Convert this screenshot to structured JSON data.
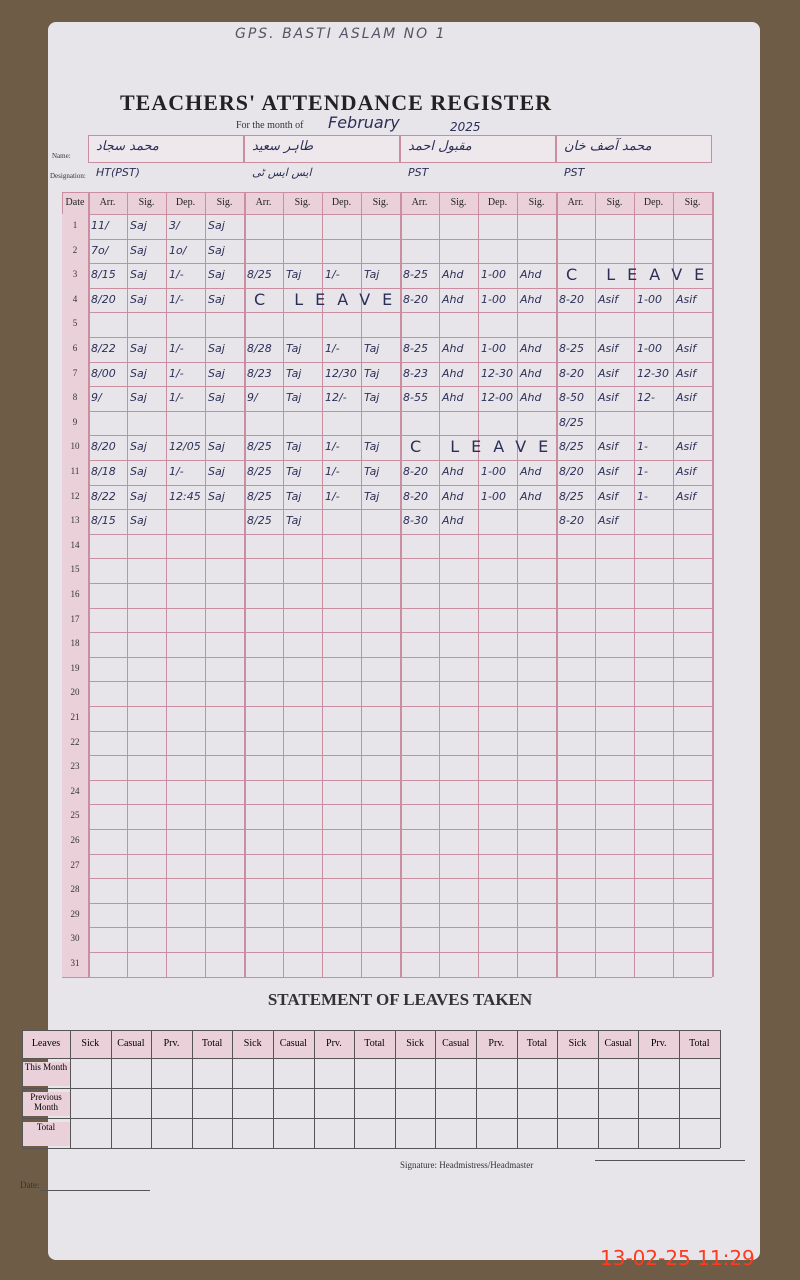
{
  "header": {
    "school": "GPS. BASTI ASLAM NO 1",
    "title": "TEACHERS' ATTENDANCE REGISTER",
    "month_label": "For the month of",
    "month": "February",
    "year": "2025",
    "name_label": "Name:",
    "designation_label": "Designation:"
  },
  "teachers": [
    {
      "name": "محمد سجاد",
      "designation": "HT(PST)"
    },
    {
      "name": "طاہر سعید",
      "designation": "ایس ایس ٹی"
    },
    {
      "name": "مقبول احمد",
      "designation": "PST"
    },
    {
      "name": "محمد آصف خان",
      "designation": "PST"
    }
  ],
  "table": {
    "date_header": "Date",
    "columns": [
      "Arr.",
      "Sig.",
      "Dep.",
      "Sig."
    ],
    "days": [
      1,
      2,
      3,
      4,
      5,
      6,
      7,
      8,
      9,
      10,
      11,
      12,
      13,
      14,
      15,
      16,
      17,
      18,
      19,
      20,
      21,
      22,
      23,
      24,
      25,
      26,
      27,
      28,
      29,
      30,
      31
    ],
    "rows": [
      [
        [
          "11/",
          "Saj",
          "3/",
          "Saj"
        ],
        [
          null,
          null,
          null,
          null
        ],
        [
          null,
          null,
          null,
          null
        ],
        [
          null,
          null,
          null,
          null
        ]
      ],
      [
        [
          "7o/",
          "Saj",
          "1o/",
          "Saj"
        ],
        [
          null,
          null,
          null,
          null
        ],
        [
          null,
          null,
          null,
          null
        ],
        [
          null,
          null,
          null,
          null
        ]
      ],
      [
        [
          "8/15",
          "Saj",
          "1/-",
          "Saj"
        ],
        [
          "8/25",
          "Taj",
          "1/-",
          "Taj"
        ],
        [
          "8-25",
          "Ahd",
          "1-00",
          "Ahd"
        ],
        "C LEAVE"
      ],
      [
        [
          "8/20",
          "Saj",
          "1/-",
          "Saj"
        ],
        "C LEAVE",
        [
          "8-20",
          "Ahd",
          "1-00",
          "Ahd"
        ],
        [
          "8-20",
          "Asif",
          "1-00",
          "Asif"
        ]
      ],
      [
        [
          null,
          null,
          null,
          null
        ],
        [
          null,
          null,
          null,
          null
        ],
        [
          null,
          null,
          null,
          null
        ],
        [
          null,
          null,
          null,
          null
        ]
      ],
      [
        [
          "8/22",
          "Saj",
          "1/-",
          "Saj"
        ],
        [
          "8/28",
          "Taj",
          "1/-",
          "Taj"
        ],
        [
          "8-25",
          "Ahd",
          "1-00",
          "Ahd"
        ],
        [
          "8-25",
          "Asif",
          "1-00",
          "Asif"
        ]
      ],
      [
        [
          "8/00",
          "Saj",
          "1/-",
          "Saj"
        ],
        [
          "8/23",
          "Taj",
          "12/30",
          "Taj"
        ],
        [
          "8-23",
          "Ahd",
          "12-30",
          "Ahd"
        ],
        [
          "8-20",
          "Asif",
          "12-30",
          "Asif"
        ]
      ],
      [
        [
          "9/",
          "Saj",
          "1/-",
          "Saj"
        ],
        [
          "9/",
          "Taj",
          "12/-",
          "Taj"
        ],
        [
          "8-55",
          "Ahd",
          "12-00",
          "Ahd"
        ],
        [
          "8-50",
          "Asif",
          "12-",
          "Asif"
        ]
      ],
      [
        [
          null,
          null,
          null,
          null
        ],
        [
          null,
          null,
          null,
          null
        ],
        [
          null,
          null,
          null,
          null
        ],
        [
          "8/25",
          null,
          null,
          null
        ]
      ],
      [
        [
          "8/20",
          "Saj",
          "12/05",
          "Saj"
        ],
        [
          "8/25",
          "Taj",
          "1/-",
          "Taj"
        ],
        "C LEAVE",
        [
          "8/25",
          "Asif",
          "1-",
          "Asif"
        ]
      ],
      [
        [
          "8/18",
          "Saj",
          "1/-",
          "Saj"
        ],
        [
          "8/25",
          "Taj",
          "1/-",
          "Taj"
        ],
        [
          "8-20",
          "Ahd",
          "1-00",
          "Ahd"
        ],
        [
          "8/20",
          "Asif",
          "1-",
          "Asif"
        ]
      ],
      [
        [
          "8/22",
          "Saj",
          "12:45",
          "Saj"
        ],
        [
          "8/25",
          "Taj",
          "1/-",
          "Taj"
        ],
        [
          "8-20",
          "Ahd",
          "1-00",
          "Ahd"
        ],
        [
          "8/25",
          "Asif",
          "1-",
          "Asif"
        ]
      ],
      [
        [
          "8/15",
          "Saj",
          null,
          null
        ],
        [
          "8/25",
          "Taj",
          null,
          null
        ],
        [
          "8-30",
          "Ahd",
          null,
          null
        ],
        [
          "8-20",
          "Asif",
          null,
          null
        ]
      ]
    ]
  },
  "leaves": {
    "title": "STATEMENT OF LEAVES TAKEN",
    "row_header": "Leaves",
    "columns": [
      "Sick",
      "Casual",
      "Prv.",
      "Total"
    ],
    "rows": [
      "This Month",
      "Previous Month",
      "Total"
    ]
  },
  "footer": {
    "signature": "Signature: Headmistress/Headmaster",
    "date": "Date:",
    "timestamp": "13-02-25  11:29"
  }
}
